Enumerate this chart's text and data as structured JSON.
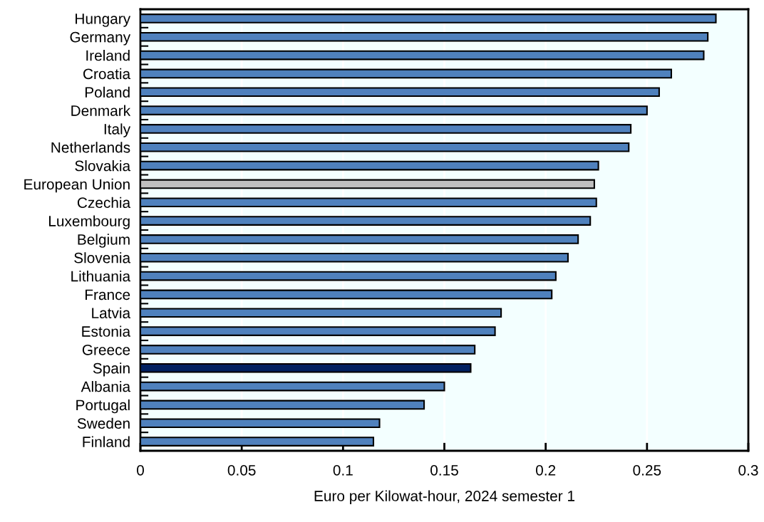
{
  "chart_data": {
    "type": "bar",
    "orientation": "horizontal",
    "xlabel": "Euro per Kilowat-hour, 2024 semester 1",
    "categories": [
      "Hungary",
      "Germany",
      "Ireland",
      "Croatia",
      "Poland",
      "Denmark",
      "Italy",
      "Netherlands",
      "Slovakia",
      "European Union",
      "Czechia",
      "Luxembourg",
      "Belgium",
      "Slovenia",
      "Lithuania",
      "France",
      "Latvia",
      "Estonia",
      "Greece",
      "Spain",
      "Albania",
      "Portugal",
      "Sweden",
      "Finland"
    ],
    "values": [
      0.284,
      0.28,
      0.278,
      0.262,
      0.256,
      0.25,
      0.242,
      0.241,
      0.226,
      0.224,
      0.225,
      0.222,
      0.216,
      0.211,
      0.205,
      0.203,
      0.178,
      0.175,
      0.165,
      0.163,
      0.15,
      0.14,
      0.118,
      0.115
    ],
    "colors": [
      "#4f81bd",
      "#4f81bd",
      "#4f81bd",
      "#4f81bd",
      "#4f81bd",
      "#4f81bd",
      "#4f81bd",
      "#4f81bd",
      "#4f81bd",
      "#bfbfbf",
      "#4f81bd",
      "#4f81bd",
      "#4f81bd",
      "#4f81bd",
      "#4f81bd",
      "#4f81bd",
      "#4f81bd",
      "#4f81bd",
      "#4f81bd",
      "#002060",
      "#4f81bd",
      "#4f81bd",
      "#4f81bd",
      "#4f81bd"
    ],
    "xlim": [
      0,
      0.3
    ],
    "xticks": [
      0,
      0.05,
      0.1,
      0.15,
      0.2,
      0.25,
      0.3
    ],
    "grid": "x"
  }
}
